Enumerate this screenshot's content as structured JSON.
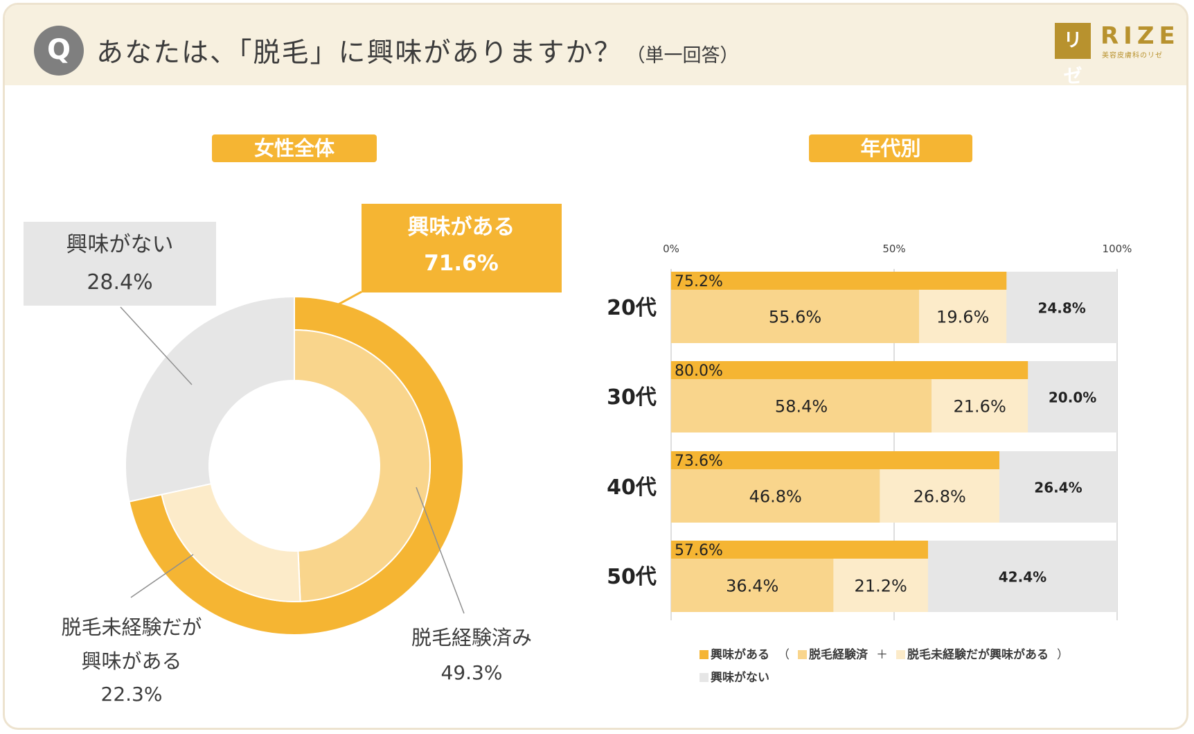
{
  "header": {
    "badge": "Q",
    "question": "あなたは、「脱毛」に興味がありますか？",
    "note": "（単一回答）",
    "logo_mark": "リゼ",
    "logo_text": "RIZE",
    "logo_sub": "美容皮膚科のリゼ"
  },
  "colors": {
    "interested": "#f5b533",
    "experienced": "#f9d58c",
    "not_experienced": "#fcebc9",
    "not_interested": "#e6e6e6",
    "header_bg": "#f7f0df",
    "logo": "#b8922e"
  },
  "legend": {
    "interested": "興味がある",
    "open_paren": "（",
    "experienced": "脱毛経験済",
    "plus": "＋",
    "not_experienced": "脱毛未経験だが興味がある",
    "close_paren": "）",
    "not_interested": "興味がない"
  },
  "chart_data": [
    {
      "type": "pie",
      "title": "女性全体",
      "outer_ring": [
        {
          "label": "興味がある",
          "value": 71.6,
          "value_label": "71.6%"
        },
        {
          "label": "興味がない",
          "value": 28.4,
          "value_label": "28.4%"
        }
      ],
      "inner_ring": [
        {
          "label": "脱毛経験済み",
          "value": 49.3,
          "value_label": "49.3%"
        },
        {
          "label": "脱毛未経験だが興味がある",
          "label_lines": [
            "脱毛未経験だが",
            "興味がある"
          ],
          "value": 22.3,
          "value_label": "22.3%"
        },
        {
          "label": "興味がない",
          "value": 28.4,
          "value_label": "28.4%"
        }
      ]
    },
    {
      "type": "bar",
      "orientation": "horizontal",
      "stacked": true,
      "title": "年代別",
      "categories": [
        "20代",
        "30代",
        "40代",
        "50代"
      ],
      "xlim": [
        0,
        100
      ],
      "ticks": [
        {
          "value": 0,
          "label": "0%"
        },
        {
          "value": 50,
          "label": "50%"
        },
        {
          "value": 100,
          "label": "100%"
        }
      ],
      "interested": {
        "name": "興味がある",
        "values": [
          75.2,
          80.0,
          73.6,
          57.6
        ],
        "labels": [
          "75.2%",
          "80.0%",
          "73.6%",
          "57.6%"
        ]
      },
      "series": [
        {
          "name": "脱毛経験済",
          "values": [
            55.6,
            58.4,
            46.8,
            36.4
          ],
          "labels": [
            "55.6%",
            "58.4%",
            "46.8%",
            "36.4%"
          ]
        },
        {
          "name": "脱毛未経験だが興味がある",
          "values": [
            19.6,
            21.6,
            26.8,
            21.2
          ],
          "labels": [
            "19.6%",
            "21.6%",
            "26.8%",
            "21.2%"
          ]
        },
        {
          "name": "興味がない",
          "values": [
            24.8,
            20.0,
            26.4,
            42.4
          ],
          "labels": [
            "24.8%",
            "20.0%",
            "26.4%",
            "42.4%"
          ]
        }
      ]
    }
  ]
}
